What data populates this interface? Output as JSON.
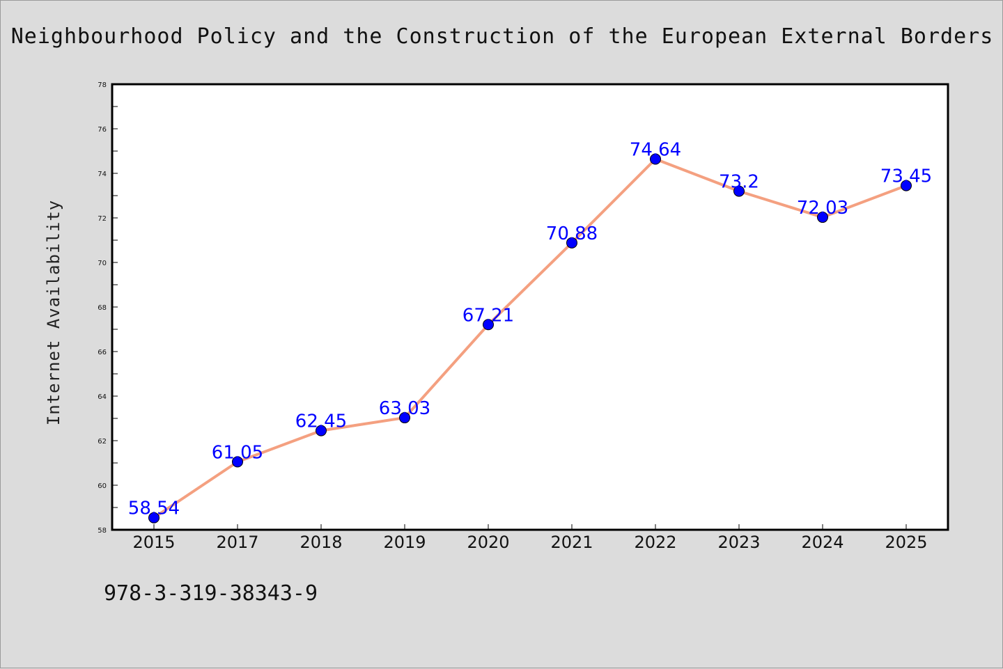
{
  "header": {
    "title": "Neighbourhood Policy and the Construction of the European External Borders"
  },
  "footer": {
    "isbn": "978-3-319-38343-9"
  },
  "chart_data": {
    "type": "line",
    "title": "Neighbourhood Policy and the Construction of the European External Borders",
    "xlabel": "",
    "ylabel": "Internet Availability",
    "categories": [
      "2015",
      "2017",
      "2018",
      "2019",
      "2020",
      "2021",
      "2022",
      "2023",
      "2024",
      "2025"
    ],
    "series": [
      {
        "values": [
          58.54,
          61.05,
          62.45,
          63.03,
          67.21,
          70.88,
          74.64,
          73.2,
          72.03,
          73.45
        ],
        "labels": [
          "58.54",
          "61.05",
          "62.45",
          "63.03",
          "67.21",
          "70.88",
          "74.64",
          "73.2",
          "72.03",
          "73.45"
        ],
        "line_color": "#f4a080",
        "marker_color": "#0000ff"
      }
    ],
    "ylim": [
      58,
      78
    ],
    "yticks": [
      58,
      60,
      62,
      64,
      66,
      68,
      70,
      72,
      74,
      76,
      78
    ],
    "ytick_labels": [
      "58",
      "60",
      "62",
      "64",
      "66",
      "68",
      "70",
      "72",
      "74",
      "76",
      "78"
    ],
    "grid": false,
    "legend": "none",
    "colors": {
      "background": "#dcdcdc",
      "plot_background": "#ffffff",
      "label_color": "#0000ff"
    }
  }
}
